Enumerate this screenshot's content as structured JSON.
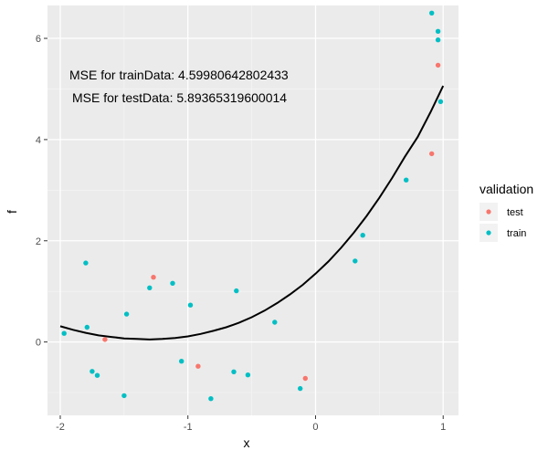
{
  "chart_data": {
    "type": "scatter",
    "xlabel": "x",
    "ylabel": "f",
    "xlim": [
      -2.1,
      1.12
    ],
    "ylim": [
      -1.45,
      6.65
    ],
    "x_ticks": [
      -2,
      -1,
      0,
      1
    ],
    "x_tick_labels": [
      "-2",
      "-1",
      "0",
      "1"
    ],
    "y_ticks": [
      0,
      2,
      4,
      6
    ],
    "y_tick_labels": [
      "0",
      "2",
      "4",
      "6"
    ],
    "grid": true,
    "legend_position": "right",
    "legend": {
      "title": "validation",
      "entries": [
        {
          "label": "test",
          "color": "#F8766D"
        },
        {
          "label": "train",
          "color": "#00BFC4"
        }
      ]
    },
    "annotations": [
      {
        "text": "MSE for trainData: 4.59980642802433"
      },
      {
        "text": "MSE for testData: 5.89365319600014"
      }
    ],
    "series": [
      {
        "name": "test",
        "color": "#F8766D",
        "points": [
          {
            "x": -1.27,
            "y": 1.28
          },
          {
            "x": -1.65,
            "y": 0.05
          },
          {
            "x": -0.92,
            "y": -0.48
          },
          {
            "x": -0.08,
            "y": -0.72
          },
          {
            "x": 0.91,
            "y": 3.72
          },
          {
            "x": 0.96,
            "y": 5.47
          }
        ]
      },
      {
        "name": "train",
        "color": "#00BFC4",
        "points": [
          {
            "x": -1.97,
            "y": 0.17
          },
          {
            "x": -1.8,
            "y": 1.56
          },
          {
            "x": -1.79,
            "y": 0.29
          },
          {
            "x": -1.75,
            "y": -0.58
          },
          {
            "x": -1.71,
            "y": -0.66
          },
          {
            "x": -1.5,
            "y": -1.06
          },
          {
            "x": -1.48,
            "y": 0.55
          },
          {
            "x": -1.3,
            "y": 1.07
          },
          {
            "x": -1.12,
            "y": 1.16
          },
          {
            "x": -1.05,
            "y": -0.38
          },
          {
            "x": -0.98,
            "y": 0.73
          },
          {
            "x": -0.82,
            "y": -1.12
          },
          {
            "x": -0.64,
            "y": -0.59
          },
          {
            "x": -0.62,
            "y": 1.01
          },
          {
            "x": -0.53,
            "y": -0.65
          },
          {
            "x": -0.32,
            "y": 0.39
          },
          {
            "x": -0.12,
            "y": -0.92
          },
          {
            "x": 0.31,
            "y": 1.6
          },
          {
            "x": 0.37,
            "y": 2.11
          },
          {
            "x": 0.71,
            "y": 3.2
          },
          {
            "x": 0.91,
            "y": 6.5
          },
          {
            "x": 0.96,
            "y": 6.14
          },
          {
            "x": 0.96,
            "y": 5.97
          },
          {
            "x": 0.98,
            "y": 4.75
          }
        ]
      }
    ],
    "fit_line": {
      "color": "#000000",
      "x": [
        -2.0,
        -1.9,
        -1.8,
        -1.7,
        -1.6,
        -1.5,
        -1.4,
        -1.3,
        -1.2,
        -1.1,
        -1.0,
        -0.9,
        -0.8,
        -0.7,
        -0.6,
        -0.5,
        -0.4,
        -0.3,
        -0.2,
        -0.1,
        0.0,
        0.1,
        0.2,
        0.3,
        0.4,
        0.5,
        0.6,
        0.7,
        0.8,
        0.9,
        1.0
      ],
      "y": [
        0.31,
        0.24,
        0.18,
        0.13,
        0.1,
        0.07,
        0.06,
        0.05,
        0.06,
        0.08,
        0.11,
        0.16,
        0.22,
        0.29,
        0.38,
        0.49,
        0.62,
        0.77,
        0.94,
        1.13,
        1.35,
        1.59,
        1.86,
        2.16,
        2.49,
        2.85,
        3.24,
        3.66,
        4.05,
        4.54,
        5.06
      ]
    }
  }
}
